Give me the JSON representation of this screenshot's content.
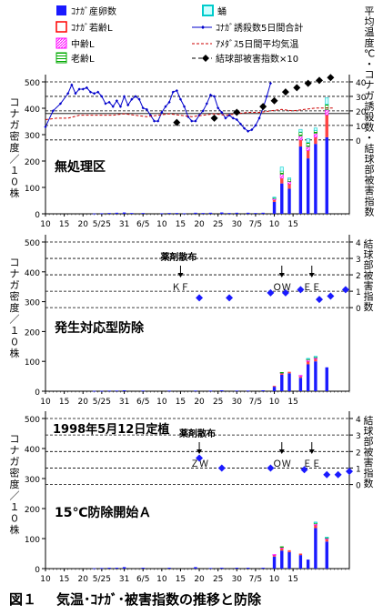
{
  "figure": {
    "caption_number": "図１",
    "caption_title": "気温･ｺﾅｶﾞ･被害指数の推移と防除"
  },
  "legend": {
    "items": [
      {
        "label": "ｺﾅｶﾞ産卵数",
        "color": "#1a1aff",
        "type": "bar"
      },
      {
        "label": "ｺﾅｶﾞ若齢L",
        "color": "#ff0000",
        "type": "bar"
      },
      {
        "label": "中齢L",
        "color": "#ff00ff",
        "type": "bar-hatch"
      },
      {
        "label": "老齢L",
        "color": "#00aa00",
        "type": "bar-lines"
      },
      {
        "label": "蛹",
        "color": "#00cccc",
        "type": "bar-light"
      },
      {
        "label": "ｺﾅｶﾞ誘殺数5日間合計",
        "color": "#0000cc",
        "type": "line-marker"
      },
      {
        "label": "ｱﾒﾀﾞｽ5日間平均気温",
        "color": "#cc0000",
        "type": "line-dash"
      },
      {
        "label": "結球部被害指数×10",
        "color": "#000000",
        "type": "marker"
      }
    ]
  },
  "right_axis_label": "平均温度℃・コナガ誘殺数・結球部被害指数",
  "right_axis_label2": "結球部被害指数",
  "left_axis_label": "コナガ密度／１０株",
  "x_ticks": [
    "10",
    "15",
    "20",
    "5/25",
    "31",
    "6/5",
    "10",
    "15",
    "20",
    "25",
    "30",
    "7/5",
    "10",
    "15"
  ],
  "chart_data": [
    {
      "type": "bar",
      "title": "無処理区",
      "ylabel": "コナガ密度／１０株",
      "ylim": [
        0,
        500
      ],
      "yticks": [
        0,
        100,
        200,
        300,
        400,
        500
      ],
      "y2ticks": [
        0,
        10,
        20,
        30,
        40
      ],
      "x": [
        "5/10",
        "5/15",
        "5/20",
        "5/25",
        "5/31",
        "6/5",
        "6/10",
        "6/15",
        "6/20",
        "6/25",
        "6/30",
        "7/5",
        "7/10",
        "7/15"
      ],
      "series": [
        {
          "name": "ｺﾅｶﾞ産卵数",
          "points": [
            [
              13,
              1
            ],
            [
              15,
              2
            ],
            [
              17,
              3
            ],
            [
              19,
              4
            ],
            [
              21,
              5
            ],
            [
              23,
              3
            ],
            [
              26,
              3
            ],
            [
              31,
              2
            ],
            [
              33,
              3
            ],
            [
              35,
              3
            ],
            [
              37,
              2
            ],
            [
              40,
              4
            ],
            [
              42,
              3
            ],
            [
              44,
              4
            ],
            [
              47,
              5
            ],
            [
              49,
              3
            ],
            [
              51,
              4
            ],
            [
              54,
              4
            ],
            [
              56,
              3
            ],
            [
              58,
              4
            ],
            [
              61,
              45
            ],
            [
              63,
              115
            ],
            [
              65,
              95
            ],
            [
              68,
              255
            ],
            [
              70,
              210
            ],
            [
              72,
              265
            ],
            [
              75,
              290
            ]
          ]
        },
        {
          "name": "ｺﾅｶﾞ若齢L",
          "points": [
            [
              61,
              8
            ],
            [
              63,
              20
            ],
            [
              65,
              18
            ],
            [
              68,
              25
            ],
            [
              70,
              30
            ],
            [
              72,
              25
            ],
            [
              75,
              85
            ]
          ]
        },
        {
          "name": "中齢L",
          "points": [
            [
              61,
              5
            ],
            [
              63,
              15
            ],
            [
              65,
              10
            ],
            [
              68,
              15
            ],
            [
              70,
              15
            ],
            [
              72,
              15
            ],
            [
              75,
              20
            ]
          ]
        },
        {
          "name": "老齢L",
          "points": [
            [
              61,
              3
            ],
            [
              63,
              12
            ],
            [
              65,
              8
            ],
            [
              68,
              15
            ],
            [
              70,
              15
            ],
            [
              72,
              10
            ],
            [
              75,
              20
            ]
          ]
        },
        {
          "name": "蛹",
          "points": [
            [
              61,
              2
            ],
            [
              63,
              15
            ],
            [
              65,
              5
            ],
            [
              68,
              10
            ],
            [
              70,
              15
            ],
            [
              72,
              10
            ],
            [
              75,
              25
            ]
          ]
        }
      ],
      "trap_5day_total": [
        [
          0,
          9
        ],
        [
          2,
          20
        ],
        [
          4,
          25
        ],
        [
          6,
          32
        ],
        [
          7,
          38
        ],
        [
          8,
          32
        ],
        [
          9,
          35
        ],
        [
          10,
          35
        ],
        [
          11,
          36
        ],
        [
          12,
          33
        ],
        [
          13,
          32
        ],
        [
          14,
          33
        ],
        [
          15,
          30
        ],
        [
          16,
          25
        ],
        [
          17,
          26
        ],
        [
          18,
          23
        ],
        [
          19,
          27
        ],
        [
          20,
          23
        ],
        [
          21,
          30
        ],
        [
          22,
          24
        ],
        [
          23,
          28
        ],
        [
          24,
          30
        ],
        [
          25,
          28
        ],
        [
          26,
          22
        ],
        [
          27,
          21
        ],
        [
          28,
          17
        ],
        [
          29,
          13
        ],
        [
          30,
          13
        ],
        [
          31,
          19
        ],
        [
          32,
          23
        ],
        [
          33,
          26
        ],
        [
          34,
          33
        ],
        [
          35,
          34
        ],
        [
          36,
          28
        ],
        [
          37,
          23
        ],
        [
          38,
          16
        ],
        [
          39,
          13
        ],
        [
          40,
          13
        ],
        [
          41,
          17
        ],
        [
          42,
          20
        ],
        [
          43,
          25
        ],
        [
          44,
          31
        ],
        [
          45,
          30
        ],
        [
          46,
          22
        ],
        [
          47,
          19
        ],
        [
          48,
          15
        ],
        [
          49,
          17
        ],
        [
          50,
          15
        ],
        [
          51,
          14
        ],
        [
          52,
          11
        ],
        [
          53,
          8
        ],
        [
          54,
          6
        ],
        [
          55,
          7
        ],
        [
          56,
          10
        ],
        [
          57,
          15
        ],
        [
          58,
          22
        ],
        [
          59,
          30
        ],
        [
          60,
          39
        ]
      ],
      "mean_temp_5day": [
        [
          0,
          14
        ],
        [
          3,
          15
        ],
        [
          6,
          15
        ],
        [
          9,
          17
        ],
        [
          12,
          17
        ],
        [
          15,
          17
        ],
        [
          18,
          17
        ],
        [
          21,
          18
        ],
        [
          24,
          17
        ],
        [
          27,
          16
        ],
        [
          30,
          17
        ],
        [
          33,
          18
        ],
        [
          36,
          17
        ],
        [
          39,
          16
        ],
        [
          42,
          17
        ],
        [
          45,
          18
        ],
        [
          48,
          17
        ],
        [
          51,
          18
        ],
        [
          54,
          19
        ],
        [
          57,
          19
        ],
        [
          60,
          20
        ],
        [
          63,
          21
        ],
        [
          66,
          20
        ],
        [
          69,
          21
        ],
        [
          72,
          22
        ],
        [
          75,
          22
        ],
        [
          77,
          22
        ]
      ],
      "damage_index_x10": [
        [
          35,
          12
        ],
        [
          45,
          15
        ],
        [
          51,
          19
        ],
        [
          58,
          23
        ],
        [
          61,
          27
        ],
        [
          64,
          33
        ],
        [
          67,
          36
        ],
        [
          70,
          39
        ],
        [
          73,
          41
        ],
        [
          76,
          43
        ]
      ]
    },
    {
      "type": "bar",
      "title": "発生対応型防除",
      "ylabel": "コナガ密度／１０株",
      "ylim": [
        0,
        500
      ],
      "yticks": [
        0,
        100,
        200,
        300,
        400,
        500
      ],
      "y2ticks": [
        0,
        1,
        2,
        3,
        4
      ],
      "y2label": "結球部被害指数",
      "annotation_label": "薬剤散布",
      "sprays": [
        {
          "x": 36,
          "label": "ＫＦ"
        },
        {
          "x": 63,
          "label": "ＯＷ"
        },
        {
          "x": 71,
          "label": "ＥＥ"
        }
      ],
      "series": [
        {
          "name": "ｺﾅｶﾞ産卵数",
          "points": [
            [
              13,
              1
            ],
            [
              15,
              1
            ],
            [
              17,
              2
            ],
            [
              19,
              2
            ],
            [
              21,
              3
            ],
            [
              26,
              2
            ],
            [
              33,
              2
            ],
            [
              40,
              2
            ],
            [
              44,
              2
            ],
            [
              47,
              3
            ],
            [
              51,
              2
            ],
            [
              54,
              2
            ],
            [
              58,
              3
            ],
            [
              61,
              15
            ],
            [
              63,
              55
            ],
            [
              65,
              60
            ],
            [
              68,
              45
            ],
            [
              70,
              90
            ],
            [
              72,
              100
            ],
            [
              75,
              80
            ]
          ]
        },
        {
          "name": "ｺﾅｶﾞ若齢L",
          "points": [
            [
              61,
              3
            ],
            [
              63,
              5
            ],
            [
              65,
              5
            ],
            [
              68,
              5
            ],
            [
              70,
              10
            ],
            [
              72,
              8
            ]
          ]
        },
        {
          "name": "中齢L",
          "points": [
            [
              63,
              2
            ],
            [
              68,
              3
            ],
            [
              70,
              5
            ],
            [
              72,
              4
            ]
          ]
        },
        {
          "name": "老齢L",
          "points": [
            [
              63,
              1
            ],
            [
              70,
              3
            ],
            [
              72,
              3
            ]
          ]
        },
        {
          "name": "蛹",
          "points": [
            [
              70,
              2
            ],
            [
              72,
              2
            ]
          ]
        }
      ],
      "damage_index": [
        [
          41,
          0.6
        ],
        [
          49,
          0.6
        ],
        [
          60,
          0.9
        ],
        [
          64,
          0.9
        ],
        [
          68,
          1.1
        ],
        [
          73,
          0.5
        ],
        [
          76,
          0.7
        ],
        [
          80,
          1.1
        ]
      ]
    },
    {
      "type": "bar",
      "title": "15℃防除開始Ａ",
      "subtitle": "1998年5月12日定植",
      "ylabel": "コナガ密度／１０株",
      "ylim": [
        0,
        500
      ],
      "yticks": [
        0,
        100,
        200,
        300,
        400,
        500
      ],
      "y2ticks": [
        0,
        1,
        2,
        3,
        4
      ],
      "y2label": "結球部被害指数",
      "annotation_label": "薬剤散布",
      "sprays": [
        {
          "x": 41,
          "label": "ＺＷ"
        },
        {
          "x": 63,
          "label": "ＯＷ"
        },
        {
          "x": 71,
          "label": "ＥＥ"
        }
      ],
      "series": [
        {
          "name": "ｺﾅｶﾞ産卵数",
          "points": [
            [
              13,
              1
            ],
            [
              15,
              2
            ],
            [
              17,
              3
            ],
            [
              19,
              3
            ],
            [
              21,
              5
            ],
            [
              26,
              3
            ],
            [
              33,
              3
            ],
            [
              40,
              5
            ],
            [
              44,
              2
            ],
            [
              47,
              3
            ],
            [
              51,
              3
            ],
            [
              54,
              3
            ],
            [
              58,
              3
            ],
            [
              61,
              40
            ],
            [
              63,
              60
            ],
            [
              65,
              55
            ],
            [
              68,
              45
            ],
            [
              70,
              30
            ],
            [
              72,
              135
            ],
            [
              75,
              90
            ]
          ]
        },
        {
          "name": "ｺﾅｶﾞ若齢L",
          "points": [
            [
              61,
              5
            ],
            [
              63,
              8
            ],
            [
              65,
              6
            ],
            [
              68,
              5
            ],
            [
              72,
              10
            ],
            [
              75,
              8
            ]
          ]
        },
        {
          "name": "中齢L",
          "points": [
            [
              61,
              2
            ],
            [
              63,
              3
            ],
            [
              72,
              4
            ],
            [
              75,
              3
            ]
          ]
        },
        {
          "name": "老齢L",
          "points": [
            [
              63,
              2
            ],
            [
              72,
              3
            ],
            [
              75,
              2
            ]
          ]
        },
        {
          "name": "蛹",
          "points": [
            [
              72,
              3
            ],
            [
              75,
              2
            ]
          ]
        }
      ],
      "damage_index": [
        [
          41,
          1.6
        ],
        [
          47,
          1.0
        ],
        [
          60,
          1.0
        ],
        [
          69,
          0.9
        ],
        [
          75,
          0.6
        ],
        [
          78,
          0.6
        ],
        [
          81,
          0.8
        ]
      ]
    }
  ]
}
